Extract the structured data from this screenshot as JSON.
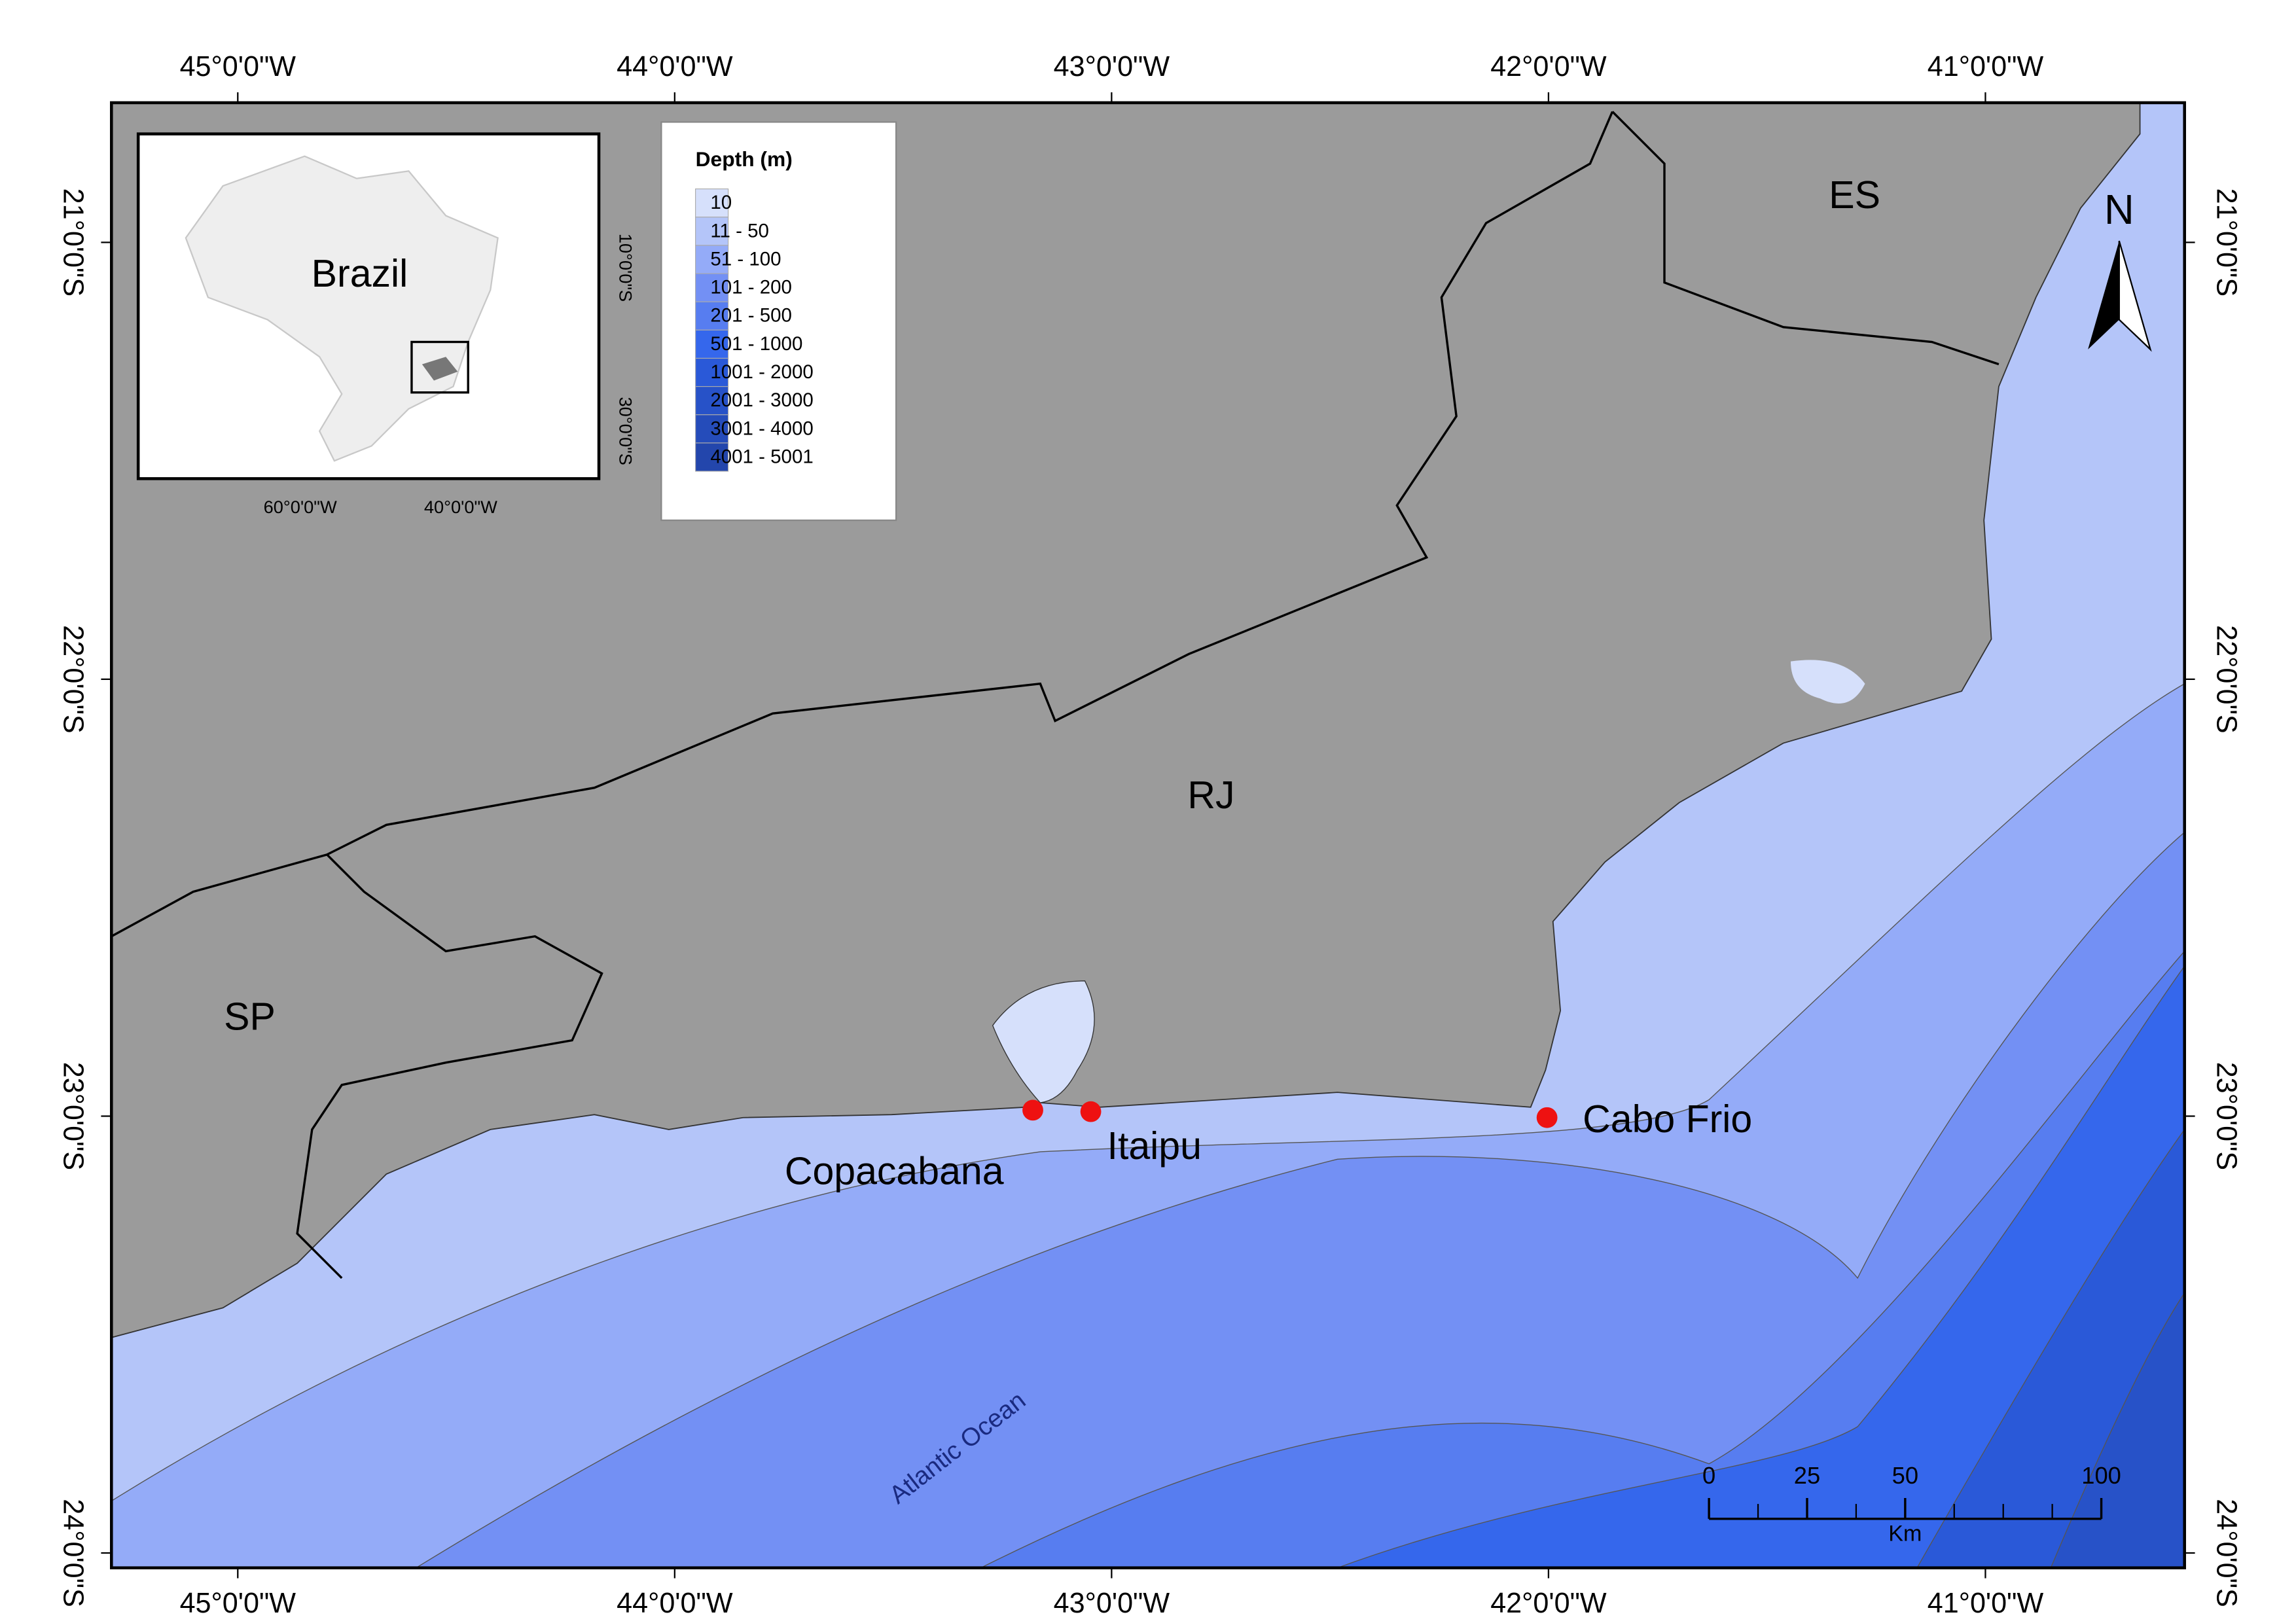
{
  "map": {
    "longitude_labels": [
      "45°0'0\"W",
      "44°0'0\"W",
      "43°0'0\"W",
      "42°0'0\"W",
      "41°0'0\"W"
    ],
    "latitude_labels": [
      "21°0'0\"S",
      "22°0'0\"S",
      "23°0'0\"S",
      "24°0'0\"S"
    ],
    "inset": {
      "label": "Brazil",
      "longitude_labels": [
        "60°0'0\"W",
        "40°0'0\"W"
      ],
      "latitude_labels": [
        "10°0'0\"S",
        "30°0'0\"S"
      ]
    },
    "legend": {
      "title": "Depth (m)",
      "items": [
        {
          "label": "10",
          "color": "#d6e0fb"
        },
        {
          "label": "11 - 50",
          "color": "#b4c5f9"
        },
        {
          "label": "51 - 100",
          "color": "#94abf8"
        },
        {
          "label": "101 - 200",
          "color": "#7390f4"
        },
        {
          "label": "201 - 500",
          "color": "#577df0"
        },
        {
          "label": "501 - 1000",
          "color": "#3567ec"
        },
        {
          "label": "1001 - 2000",
          "color": "#2a59d8"
        },
        {
          "label": "2001 - 3000",
          "color": "#2752c8"
        },
        {
          "label": "3001 - 4000",
          "color": "#254cba"
        },
        {
          "label": "4001 - 5001",
          "color": "#2346ac"
        }
      ]
    },
    "regions": [
      "ES",
      "RJ",
      "SP"
    ],
    "sites": [
      "Copacabana",
      "Itaipu",
      "Cabo Frio"
    ],
    "ocean_label": "Atlantic Ocean",
    "north": "N",
    "scale_bar": {
      "ticks": [
        0,
        25,
        50,
        100
      ],
      "unit": "Km"
    }
  }
}
